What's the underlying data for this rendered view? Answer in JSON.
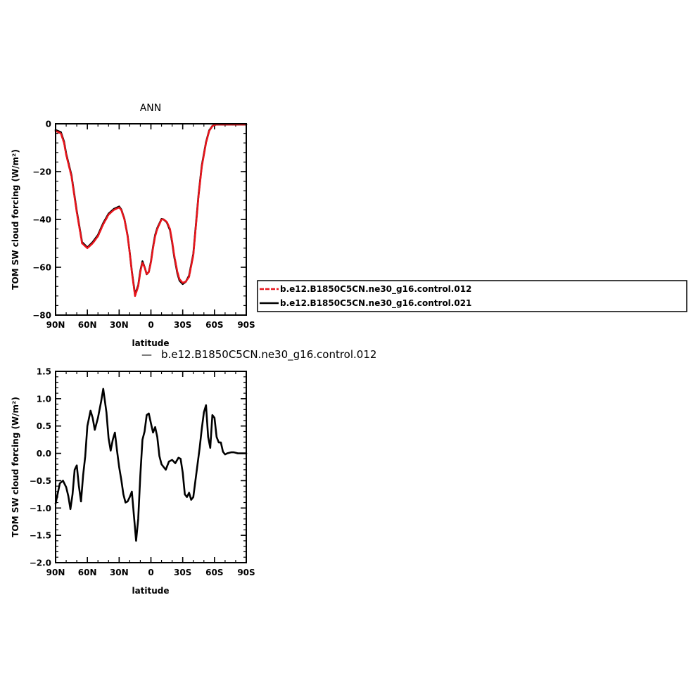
{
  "chart_data": [
    {
      "type": "line",
      "title": "ANN",
      "xlabel": "latitude",
      "ylabel": "TOM SW cloud forcing (W/m²)",
      "xlim": [
        -90,
        90
      ],
      "ylim": [
        -80,
        0
      ],
      "x_tick_values": [
        -90,
        -60,
        -30,
        0,
        30,
        60,
        90
      ],
      "x_tick_labels": [
        "90N",
        "60N",
        "30N",
        "0",
        "30S",
        "60S",
        "90S"
      ],
      "y_tick_values": [
        0,
        -20,
        -40,
        -60,
        -80
      ],
      "y_tick_labels": [
        "0",
        "−20",
        "−40",
        "−60",
        "−80"
      ],
      "legend_position": "right",
      "series": [
        {
          "name": "b.e12.B1850C5CN.ne30_g16.control.012",
          "color": "#e8141b",
          "dash": "dashed",
          "x": [
            -90,
            -85,
            -82,
            -80,
            -75,
            -70,
            -65,
            -60,
            -55,
            -50,
            -47,
            -45,
            -40,
            -35,
            -30,
            -28,
            -25,
            -22,
            -20,
            -18,
            -15,
            -12,
            -10,
            -8,
            -6,
            -4,
            -2,
            0,
            2,
            4,
            6,
            8,
            10,
            12,
            15,
            18,
            20,
            22,
            25,
            27,
            30,
            33,
            36,
            40,
            43,
            45,
            48,
            52,
            55,
            58,
            60,
            62,
            65,
            68,
            70,
            72,
            75,
            80,
            85,
            90
          ],
          "y": [
            -3,
            -4,
            -8,
            -13,
            -22,
            -37,
            -50,
            -52,
            -50,
            -47,
            -44,
            -42,
            -38,
            -36,
            -35,
            -36,
            -40,
            -47,
            -54,
            -62,
            -72,
            -68,
            -62,
            -58,
            -60,
            -63,
            -62,
            -58,
            -52,
            -47,
            -44,
            -42,
            -40,
            -40,
            -41,
            -44,
            -49,
            -55,
            -62,
            -65,
            -66.5,
            -66,
            -64,
            -55,
            -40,
            -30,
            -18,
            -8,
            -3,
            -1,
            -0.5,
            -0.3,
            -0.3,
            -0.3,
            -0.3,
            -0.3,
            -0.3,
            -0.3,
            -0.3,
            -0.3
          ]
        },
        {
          "name": "b.e12.B1850C5CN.ne30_g16.control.021",
          "color": "#000000",
          "dash": "solid",
          "x": [
            -90,
            -85,
            -82,
            -80,
            -75,
            -70,
            -65,
            -60,
            -55,
            -50,
            -47,
            -45,
            -40,
            -35,
            -30,
            -28,
            -25,
            -22,
            -20,
            -18,
            -15,
            -12,
            -10,
            -8,
            -6,
            -4,
            -2,
            0,
            2,
            4,
            6,
            8,
            10,
            12,
            15,
            18,
            20,
            22,
            25,
            27,
            30,
            33,
            36,
            40,
            43,
            45,
            48,
            52,
            55,
            58,
            60,
            62,
            65,
            68,
            70,
            72,
            75,
            80,
            85,
            90
          ],
          "y": [
            -2.6,
            -3.5,
            -7.5,
            -12.5,
            -21.5,
            -36.5,
            -49.5,
            -51.7,
            -49.5,
            -46.5,
            -43.5,
            -41.5,
            -37.6,
            -35.6,
            -34.6,
            -35.8,
            -39.8,
            -46.8,
            -53.9,
            -61.7,
            -71.4,
            -67.6,
            -61.5,
            -57.5,
            -59.9,
            -62.9,
            -61.9,
            -57.6,
            -51.5,
            -46.5,
            -43.6,
            -41.7,
            -39.8,
            -40.0,
            -41.2,
            -44.5,
            -49.5,
            -55.6,
            -62.6,
            -65.6,
            -67.0,
            -66.0,
            -63.5,
            -54.5,
            -39.5,
            -29.5,
            -17.5,
            -7.7,
            -2.8,
            -0.9,
            -0.5,
            -0.3,
            -0.3,
            -0.3,
            -0.3,
            -0.3,
            -0.3,
            -0.3,
            -0.3,
            -0.3
          ]
        }
      ]
    },
    {
      "type": "line",
      "title": "b.e12.B1850C5CN.ne30_g16.control.012",
      "xlabel": "latitude",
      "ylabel": "TOM SW cloud forcing (W/m²)",
      "xlim": [
        -90,
        90
      ],
      "ylim": [
        -2.0,
        1.5
      ],
      "x_tick_values": [
        -90,
        -60,
        -30,
        0,
        30,
        60,
        90
      ],
      "x_tick_labels": [
        "90N",
        "60N",
        "30N",
        "0",
        "30S",
        "60S",
        "90S"
      ],
      "y_tick_values": [
        1.5,
        1.0,
        0.5,
        0.0,
        -0.5,
        -1.0,
        -1.5,
        -2.0
      ],
      "y_tick_labels": [
        "1.5",
        "1.0",
        "0.5",
        "0.0",
        "−0.5",
        "−1.0",
        "−1.5",
        "−2.0"
      ],
      "series": [
        {
          "color": "#000000",
          "dash": "solid",
          "x": [
            -90,
            -86,
            -83,
            -80,
            -78,
            -76,
            -74,
            -72,
            -70,
            -68,
            -66,
            -64,
            -62,
            -60,
            -57,
            -55,
            -53,
            -50,
            -47,
            -45,
            -42,
            -40,
            -38,
            -36,
            -34,
            -32,
            -30,
            -28,
            -26,
            -24,
            -22,
            -20,
            -18,
            -16,
            -14,
            -12,
            -10,
            -8,
            -6,
            -4,
            -2,
            0,
            2,
            4,
            6,
            8,
            10,
            12,
            14,
            17,
            20,
            23,
            26,
            28,
            30,
            32,
            34,
            36,
            38,
            40,
            42,
            44,
            46,
            48,
            50,
            52,
            54,
            56,
            58,
            60,
            62,
            64,
            66,
            68,
            70,
            72,
            74,
            76,
            78,
            80,
            82,
            84,
            86,
            88,
            90
          ],
          "y": [
            -0.92,
            -0.55,
            -0.5,
            -0.62,
            -0.78,
            -1.02,
            -0.75,
            -0.3,
            -0.22,
            -0.6,
            -0.88,
            -0.4,
            -0.05,
            0.5,
            0.78,
            0.65,
            0.43,
            0.65,
            0.95,
            1.18,
            0.75,
            0.28,
            0.05,
            0.25,
            0.38,
            0.05,
            -0.25,
            -0.48,
            -0.75,
            -0.9,
            -0.88,
            -0.8,
            -0.7,
            -1.15,
            -1.6,
            -1.2,
            -0.4,
            0.25,
            0.4,
            0.7,
            0.73,
            0.55,
            0.38,
            0.48,
            0.3,
            -0.05,
            -0.2,
            -0.25,
            -0.3,
            -0.15,
            -0.12,
            -0.18,
            -0.08,
            -0.1,
            -0.35,
            -0.75,
            -0.8,
            -0.72,
            -0.85,
            -0.8,
            -0.5,
            -0.2,
            0.1,
            0.45,
            0.75,
            0.88,
            0.3,
            0.1,
            0.7,
            0.65,
            0.3,
            0.2,
            0.2,
            0.03,
            -0.02,
            0.0,
            0.01,
            0.02,
            0.02,
            0.01,
            0.0,
            0.0,
            0.0,
            0.0,
            0.0
          ]
        }
      ]
    }
  ]
}
